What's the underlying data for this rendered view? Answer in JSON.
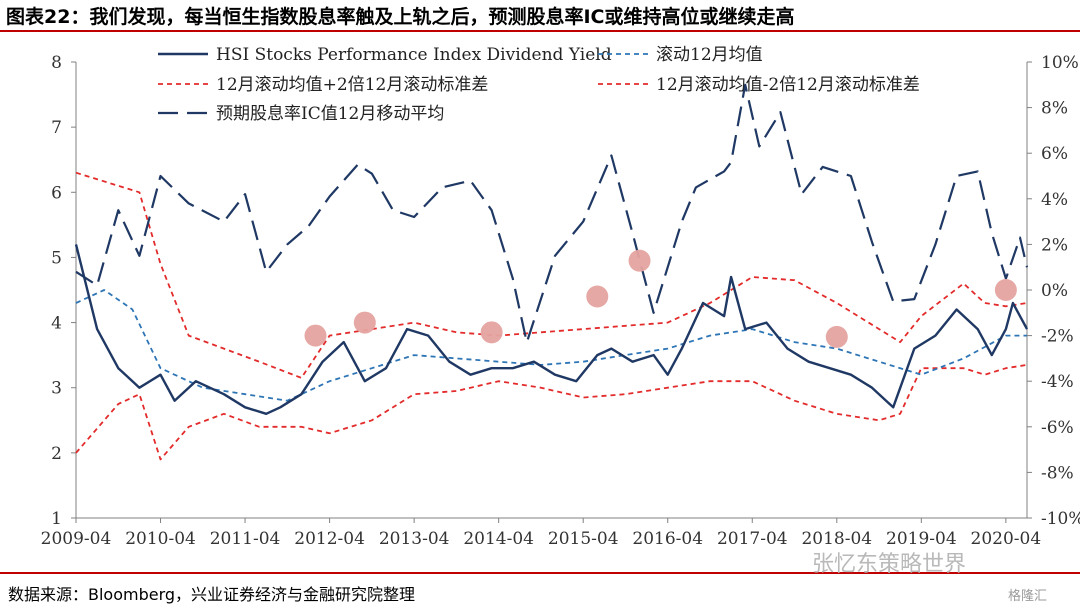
{
  "title": "图表22：我们发现，每当恒生指数股息率触及上轨之后，预测股息率IC或维持高位或继续走高",
  "source": "数据来源：Bloomberg，兴业证券经济与金融研究院整理",
  "watermark": "张忆东策略世界",
  "watermark_small": "格隆汇",
  "colors": {
    "hsi": "#1f3864",
    "ma": "#2e75b6",
    "band": "#e32b2b",
    "ic": "#1f3864",
    "marker": "#e5a3a0",
    "rule": "#c00000"
  },
  "chart_data": {
    "type": "line",
    "x_ticks": [
      "2009-04",
      "2010-04",
      "2011-04",
      "2012-04",
      "2013-04",
      "2014-04",
      "2015-04",
      "2016-04",
      "2017-04",
      "2018-04",
      "2019-04",
      "2020-04"
    ],
    "x_range": [
      "2009-04",
      "2020-07"
    ],
    "y_left": {
      "ticks": [
        "1",
        "2",
        "3",
        "4",
        "5",
        "6",
        "7",
        "8"
      ],
      "range": [
        1,
        8
      ]
    },
    "y_right": {
      "ticks": [
        "-10%",
        "-8%",
        "-6%",
        "-4%",
        "-2%",
        "0%",
        "2%",
        "4%",
        "6%",
        "8%",
        "10%"
      ],
      "range": [
        -10,
        10
      ]
    },
    "legend": [
      {
        "key": "hsi",
        "label": "HSI Stocks Performance Index Dividend Yield"
      },
      {
        "key": "ma",
        "label": "滚动12月均值"
      },
      {
        "key": "upper",
        "label": "12月滚动均值+2倍12月滚动标准差"
      },
      {
        "key": "lower",
        "label": "12月滚动均值-2倍12月滚动标准差"
      },
      {
        "key": "ic",
        "label": "预期股息率IC值12月移动平均"
      }
    ],
    "series": [
      {
        "key": "hsi",
        "axis": "left",
        "points": [
          [
            "2009-04",
            5.2
          ],
          [
            "2009-07",
            3.9
          ],
          [
            "2009-10",
            3.3
          ],
          [
            "2010-01",
            3.0
          ],
          [
            "2010-04",
            3.2
          ],
          [
            "2010-06",
            2.8
          ],
          [
            "2010-09",
            3.1
          ],
          [
            "2011-01",
            2.9
          ],
          [
            "2011-04",
            2.7
          ],
          [
            "2011-07",
            2.6
          ],
          [
            "2011-09",
            2.7
          ],
          [
            "2011-12",
            2.9
          ],
          [
            "2012-03",
            3.4
          ],
          [
            "2012-06",
            3.7
          ],
          [
            "2012-09",
            3.1
          ],
          [
            "2012-12",
            3.3
          ],
          [
            "2013-03",
            3.9
          ],
          [
            "2013-06",
            3.8
          ],
          [
            "2013-09",
            3.4
          ],
          [
            "2013-12",
            3.2
          ],
          [
            "2014-03",
            3.3
          ],
          [
            "2014-06",
            3.3
          ],
          [
            "2014-09",
            3.4
          ],
          [
            "2014-12",
            3.2
          ],
          [
            "2015-03",
            3.1
          ],
          [
            "2015-06",
            3.5
          ],
          [
            "2015-08",
            3.6
          ],
          [
            "2015-11",
            3.4
          ],
          [
            "2016-02",
            3.5
          ],
          [
            "2016-04",
            3.2
          ],
          [
            "2016-06",
            3.6
          ],
          [
            "2016-09",
            4.3
          ],
          [
            "2016-12",
            4.1
          ],
          [
            "2017-01",
            4.7
          ],
          [
            "2017-03",
            3.9
          ],
          [
            "2017-06",
            4.0
          ],
          [
            "2017-09",
            3.6
          ],
          [
            "2017-12",
            3.4
          ],
          [
            "2018-03",
            3.3
          ],
          [
            "2018-06",
            3.2
          ],
          [
            "2018-09",
            3.0
          ],
          [
            "2018-12",
            2.7
          ],
          [
            "2019-03",
            3.6
          ],
          [
            "2019-06",
            3.8
          ],
          [
            "2019-09",
            4.2
          ],
          [
            "2019-12",
            3.9
          ],
          [
            "2020-02",
            3.5
          ],
          [
            "2020-04",
            3.9
          ],
          [
            "2020-05",
            4.3
          ],
          [
            "2020-07",
            3.9
          ]
        ]
      },
      {
        "key": "ma",
        "axis": "left",
        "points": [
          [
            "2009-04",
            4.3
          ],
          [
            "2009-08",
            4.5
          ],
          [
            "2009-12",
            4.2
          ],
          [
            "2010-04",
            3.3
          ],
          [
            "2010-10",
            3.0
          ],
          [
            "2011-04",
            2.9
          ],
          [
            "2011-10",
            2.8
          ],
          [
            "2012-04",
            3.1
          ],
          [
            "2012-10",
            3.3
          ],
          [
            "2013-04",
            3.5
          ],
          [
            "2013-10",
            3.45
          ],
          [
            "2014-04",
            3.4
          ],
          [
            "2014-10",
            3.35
          ],
          [
            "2015-04",
            3.4
          ],
          [
            "2015-10",
            3.5
          ],
          [
            "2016-04",
            3.6
          ],
          [
            "2016-10",
            3.8
          ],
          [
            "2017-04",
            3.9
          ],
          [
            "2017-10",
            3.7
          ],
          [
            "2018-04",
            3.6
          ],
          [
            "2018-10",
            3.4
          ],
          [
            "2019-04",
            3.2
          ],
          [
            "2019-10",
            3.45
          ],
          [
            "2020-04",
            3.8
          ],
          [
            "2020-07",
            3.8
          ]
        ]
      },
      {
        "key": "upper",
        "axis": "left",
        "points": [
          [
            "2009-04",
            6.3
          ],
          [
            "2009-10",
            6.1
          ],
          [
            "2010-01",
            6.0
          ],
          [
            "2010-04",
            4.9
          ],
          [
            "2010-08",
            3.8
          ],
          [
            "2011-01",
            3.6
          ],
          [
            "2011-06",
            3.4
          ],
          [
            "2011-12",
            3.15
          ],
          [
            "2012-04",
            3.8
          ],
          [
            "2012-10",
            3.9
          ],
          [
            "2013-04",
            4.0
          ],
          [
            "2013-10",
            3.85
          ],
          [
            "2014-04",
            3.8
          ],
          [
            "2014-10",
            3.85
          ],
          [
            "2015-04",
            3.9
          ],
          [
            "2015-10",
            3.95
          ],
          [
            "2016-04",
            4.0
          ],
          [
            "2016-10",
            4.3
          ],
          [
            "2017-04",
            4.7
          ],
          [
            "2017-10",
            4.65
          ],
          [
            "2018-04",
            4.3
          ],
          [
            "2018-10",
            3.9
          ],
          [
            "2019-01",
            3.7
          ],
          [
            "2019-04",
            4.1
          ],
          [
            "2019-10",
            4.6
          ],
          [
            "2020-01",
            4.3
          ],
          [
            "2020-04",
            4.25
          ],
          [
            "2020-07",
            4.3
          ]
        ]
      },
      {
        "key": "lower",
        "axis": "left",
        "points": [
          [
            "2009-04",
            2.0
          ],
          [
            "2009-10",
            2.75
          ],
          [
            "2010-01",
            2.9
          ],
          [
            "2010-04",
            1.9
          ],
          [
            "2010-08",
            2.4
          ],
          [
            "2011-01",
            2.6
          ],
          [
            "2011-06",
            2.4
          ],
          [
            "2011-12",
            2.4
          ],
          [
            "2012-04",
            2.3
          ],
          [
            "2012-10",
            2.5
          ],
          [
            "2013-04",
            2.9
          ],
          [
            "2013-10",
            2.95
          ],
          [
            "2014-04",
            3.1
          ],
          [
            "2014-10",
            3.0
          ],
          [
            "2015-04",
            2.85
          ],
          [
            "2015-10",
            2.9
          ],
          [
            "2016-04",
            3.0
          ],
          [
            "2016-10",
            3.1
          ],
          [
            "2017-04",
            3.1
          ],
          [
            "2017-10",
            2.8
          ],
          [
            "2018-04",
            2.6
          ],
          [
            "2018-10",
            2.5
          ],
          [
            "2019-01",
            2.6
          ],
          [
            "2019-04",
            3.3
          ],
          [
            "2019-10",
            3.3
          ],
          [
            "2020-01",
            3.2
          ],
          [
            "2020-04",
            3.3
          ],
          [
            "2020-07",
            3.35
          ]
        ]
      },
      {
        "key": "ic",
        "axis": "right",
        "points": [
          [
            "2009-04",
            0.8
          ],
          [
            "2009-07",
            0.2
          ],
          [
            "2009-10",
            3.5
          ],
          [
            "2010-01",
            1.5
          ],
          [
            "2010-04",
            5.0
          ],
          [
            "2010-08",
            3.8
          ],
          [
            "2011-01",
            3.0
          ],
          [
            "2011-04",
            4.2
          ],
          [
            "2011-07",
            0.8
          ],
          [
            "2011-10",
            2.0
          ],
          [
            "2012-01",
            2.8
          ],
          [
            "2012-04",
            4.1
          ],
          [
            "2012-08",
            5.5
          ],
          [
            "2012-10",
            5.1
          ],
          [
            "2013-01",
            3.5
          ],
          [
            "2013-04",
            3.2
          ],
          [
            "2013-08",
            4.5
          ],
          [
            "2013-12",
            4.8
          ],
          [
            "2014-03",
            3.5
          ],
          [
            "2014-06",
            0.5
          ],
          [
            "2014-08",
            -2.3
          ],
          [
            "2014-12",
            1.5
          ],
          [
            "2015-04",
            3.0
          ],
          [
            "2015-08",
            5.9
          ],
          [
            "2015-11",
            2.5
          ],
          [
            "2016-02",
            -1.0
          ],
          [
            "2016-06",
            3.0
          ],
          [
            "2016-08",
            4.5
          ],
          [
            "2016-12",
            5.2
          ],
          [
            "2017-01",
            5.6
          ],
          [
            "2017-03",
            9.0
          ],
          [
            "2017-05",
            6.3
          ],
          [
            "2017-08",
            7.8
          ],
          [
            "2017-11",
            4.2
          ],
          [
            "2018-02",
            5.4
          ],
          [
            "2018-06",
            5.0
          ],
          [
            "2018-09",
            2.1
          ],
          [
            "2018-12",
            -0.5
          ],
          [
            "2019-03",
            -0.4
          ],
          [
            "2019-06",
            2.0
          ],
          [
            "2019-09",
            5.0
          ],
          [
            "2019-12",
            5.2
          ],
          [
            "2020-02",
            2.5
          ],
          [
            "2020-04",
            0.5
          ],
          [
            "2020-06",
            2.3
          ],
          [
            "2020-07",
            1.0
          ]
        ]
      }
    ],
    "markers": [
      {
        "x": "2012-02",
        "y": 3.8
      },
      {
        "x": "2012-09",
        "y": 4.0
      },
      {
        "x": "2014-03",
        "y": 3.85
      },
      {
        "x": "2015-06",
        "y": 4.4
      },
      {
        "x": "2015-12",
        "y": 4.95
      },
      {
        "x": "2018-04",
        "y": 3.78
      },
      {
        "x": "2020-04",
        "y": 4.5
      }
    ]
  }
}
